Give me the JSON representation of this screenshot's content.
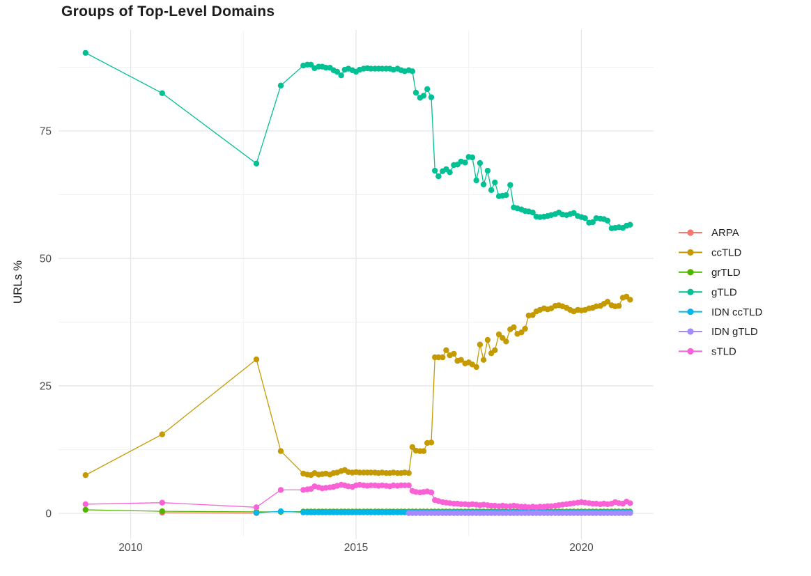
{
  "chart_data": {
    "type": "line",
    "title": "Groups of Top-Level Domains",
    "xlabel": "",
    "ylabel": "URLs %",
    "xlim": [
      2008.4,
      2021.6
    ],
    "ylim": [
      -4.5,
      94.8
    ],
    "x_ticks": [
      "2010",
      "2015",
      "2020"
    ],
    "x_tick_values": [
      2010,
      2015,
      2020
    ],
    "x_minor_tick_values": [
      2012.5,
      2017.5
    ],
    "y_ticks": [
      "0",
      "25",
      "50",
      "75"
    ],
    "y_tick_values": [
      0,
      25,
      50,
      75
    ],
    "y_minor_tick_values": [
      12.5,
      37.5,
      62.5,
      87.5
    ],
    "grid": true,
    "legend_position": "right",
    "colors": {
      "major_grid": "#e4e4e4",
      "minor_grid": "#f2f2f2",
      "tick_label": "#4d4d4d",
      "text": "#1c1c1c"
    },
    "dense_x": [
      2013.83,
      2013.92,
      2014.0,
      2014.08,
      2014.17,
      2014.25,
      2014.33,
      2014.42,
      2014.5,
      2014.58,
      2014.67,
      2014.75,
      2014.83,
      2014.92,
      2015.0,
      2015.08,
      2015.17,
      2015.25,
      2015.33,
      2015.42,
      2015.5,
      2015.58,
      2015.67,
      2015.75,
      2015.83,
      2015.92,
      2016.0,
      2016.08,
      2016.17,
      2016.25,
      2016.33,
      2016.42,
      2016.5,
      2016.58,
      2016.67,
      2016.75,
      2016.83,
      2016.92,
      2017.0,
      2017.08,
      2017.17,
      2017.25,
      2017.33,
      2017.42,
      2017.5,
      2017.58,
      2017.67,
      2017.75,
      2017.83,
      2017.92,
      2018.0,
      2018.08,
      2018.17,
      2018.25,
      2018.33,
      2018.42,
      2018.5,
      2018.58,
      2018.67,
      2018.75,
      2018.83,
      2018.92,
      2019.0,
      2019.08,
      2019.17,
      2019.25,
      2019.33,
      2019.42,
      2019.5,
      2019.58,
      2019.67,
      2019.75,
      2019.83,
      2019.92,
      2020.0,
      2020.08,
      2020.17,
      2020.25,
      2020.33,
      2020.42,
      2020.5,
      2020.58,
      2020.67,
      2020.75,
      2020.83,
      2020.92,
      2021.0,
      2021.08
    ],
    "series": [
      {
        "name": "ARPA",
        "color": "#F8766D",
        "early": [
          [
            2010.7,
            0.15
          ],
          [
            2012.79,
            0.05
          ]
        ]
      },
      {
        "name": "ccTLD",
        "color": "#C49A00",
        "early": [
          [
            2009.0,
            7.5
          ],
          [
            2010.7,
            15.5
          ],
          [
            2012.79,
            30.2
          ],
          [
            2013.33,
            12.2
          ]
        ],
        "dense": [
          7.8,
          7.6,
          7.5,
          7.9,
          7.6,
          7.7,
          7.8,
          7.6,
          7.9,
          8.0,
          8.3,
          8.5,
          8.1,
          8.0,
          8.1,
          8.0,
          8.0,
          8.0,
          8.0,
          8.0,
          7.9,
          8.0,
          7.9,
          7.9,
          8.0,
          7.9,
          7.9,
          8.0,
          7.9,
          13.0,
          12.3,
          12.2,
          12.2,
          13.8,
          13.9,
          30.6,
          30.6,
          30.6,
          32.0,
          31.0,
          31.3,
          29.9,
          30.1,
          29.4,
          29.6,
          29.2,
          28.7,
          33.1,
          30.1,
          34.0,
          31.4,
          32.0,
          35.1,
          34.4,
          33.7,
          36.1,
          36.5,
          35.2,
          35.5,
          36.2,
          38.8,
          38.9,
          39.6,
          39.9,
          40.2,
          40.0,
          40.2,
          40.7,
          40.8,
          40.6,
          40.3,
          39.9,
          39.6,
          39.9,
          39.8,
          39.9,
          40.2,
          40.3,
          40.6,
          40.7,
          41.1,
          41.5,
          40.8,
          40.6,
          40.7,
          42.3,
          42.5,
          41.9
        ]
      },
      {
        "name": "grTLD",
        "color": "#53B400",
        "early": [
          [
            2009.0,
            0.7
          ],
          [
            2010.7,
            0.4
          ],
          [
            2012.79,
            0.3
          ],
          [
            2013.33,
            0.3
          ]
        ],
        "dense_const": 0.35
      },
      {
        "name": "gTLD",
        "color": "#00C094",
        "early": [
          [
            2009.0,
            90.3
          ],
          [
            2010.7,
            82.4
          ],
          [
            2012.79,
            68.6
          ],
          [
            2013.33,
            83.9
          ]
        ],
        "dense": [
          87.8,
          88.0,
          88.0,
          87.3,
          87.6,
          87.6,
          87.4,
          87.4,
          86.9,
          86.6,
          85.9,
          87.0,
          87.2,
          86.9,
          86.6,
          87.0,
          87.2,
          87.3,
          87.2,
          87.2,
          87.2,
          87.2,
          87.2,
          87.2,
          87.0,
          87.2,
          86.9,
          86.7,
          86.9,
          86.7,
          82.5,
          81.5,
          81.9,
          83.2,
          81.6,
          67.2,
          66.1,
          67.1,
          67.5,
          66.9,
          68.3,
          68.4,
          69.0,
          68.8,
          69.9,
          69.8,
          65.3,
          68.7,
          64.5,
          67.2,
          63.4,
          64.9,
          62.2,
          62.3,
          62.4,
          64.4,
          60.0,
          59.8,
          59.6,
          59.3,
          59.2,
          59.0,
          58.2,
          58.1,
          58.2,
          58.3,
          58.5,
          58.7,
          59.0,
          58.6,
          58.5,
          58.7,
          58.9,
          58.3,
          58.1,
          57.9,
          57.0,
          57.1,
          57.9,
          57.8,
          57.7,
          57.4,
          55.9,
          56.0,
          56.1,
          56.0,
          56.4,
          56.6
        ]
      },
      {
        "name": "IDN ccTLD",
        "color": "#00B6EB",
        "early": [
          [
            2012.79,
            0.1
          ],
          [
            2013.33,
            0.4
          ]
        ],
        "dense_const": 0.2
      },
      {
        "name": "IDN gTLD",
        "color": "#A58AFF",
        "dense_const": 0.05,
        "dense_from": 2016.17
      },
      {
        "name": "sTLD",
        "color": "#FB61D7",
        "early": [
          [
            2009.0,
            1.8
          ],
          [
            2010.7,
            2.1
          ],
          [
            2012.79,
            1.2
          ],
          [
            2013.33,
            4.6
          ]
        ],
        "dense": [
          4.6,
          4.7,
          4.8,
          5.3,
          5.1,
          4.9,
          5.0,
          5.1,
          5.2,
          5.4,
          5.6,
          5.5,
          5.3,
          5.2,
          5.5,
          5.6,
          5.5,
          5.4,
          5.5,
          5.5,
          5.4,
          5.5,
          5.4,
          5.3,
          5.5,
          5.4,
          5.5,
          5.5,
          5.5,
          4.4,
          4.2,
          4.1,
          4.2,
          4.3,
          4.1,
          2.6,
          2.4,
          2.2,
          2.1,
          2.0,
          1.9,
          1.9,
          1.8,
          1.8,
          1.7,
          1.8,
          1.7,
          1.6,
          1.7,
          1.6,
          1.5,
          1.5,
          1.4,
          1.5,
          1.4,
          1.4,
          1.5,
          1.4,
          1.3,
          1.3,
          1.2,
          1.3,
          1.2,
          1.3,
          1.3,
          1.4,
          1.4,
          1.5,
          1.6,
          1.7,
          1.8,
          1.9,
          2.0,
          2.1,
          2.2,
          2.1,
          2.0,
          1.9,
          1.9,
          1.8,
          1.9,
          1.8,
          1.9,
          2.2,
          2.0,
          1.9,
          2.3,
          2.0
        ]
      }
    ]
  }
}
